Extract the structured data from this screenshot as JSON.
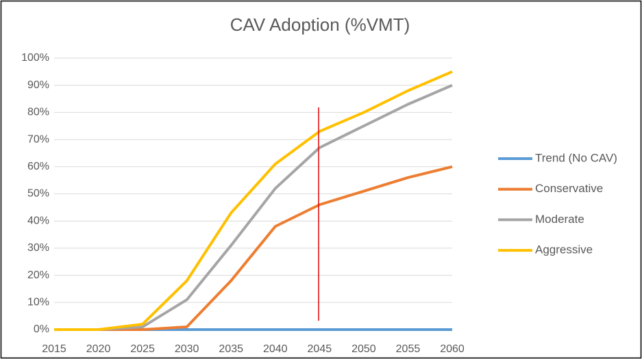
{
  "chart_data": {
    "type": "line",
    "title": "CAV Adoption (%VMT)",
    "x": [
      2015,
      2020,
      2025,
      2030,
      2035,
      2040,
      2045,
      2050,
      2055,
      2060
    ],
    "xlim": [
      2015,
      2060
    ],
    "xticks": [
      2015,
      2020,
      2025,
      2030,
      2035,
      2040,
      2045,
      2050,
      2055,
      2060
    ],
    "ylim": [
      0,
      100
    ],
    "yticks": [
      {
        "value": 0,
        "label": "0%"
      },
      {
        "value": 10,
        "label": "10%"
      },
      {
        "value": 20,
        "label": "20%"
      },
      {
        "value": 30,
        "label": "30%"
      },
      {
        "value": 40,
        "label": "40%"
      },
      {
        "value": 50,
        "label": "50%"
      },
      {
        "value": 60,
        "label": "60%"
      },
      {
        "value": 70,
        "label": "70%"
      },
      {
        "value": 80,
        "label": "80%"
      },
      {
        "value": 90,
        "label": "90%"
      },
      {
        "value": 100,
        "label": "100%"
      }
    ],
    "grid": true,
    "legend": "right",
    "series": [
      {
        "name": "Trend (No CAV)",
        "color": "#5b9bd5",
        "values": [
          0,
          0,
          0,
          0,
          0,
          0,
          0,
          0,
          0,
          0
        ]
      },
      {
        "name": "Conservative",
        "color": "#ed7d31",
        "values": [
          0,
          0,
          0,
          1,
          18,
          38,
          46,
          51,
          56,
          60
        ]
      },
      {
        "name": "Moderate",
        "color": "#a5a5a5",
        "values": [
          0,
          0,
          1,
          11,
          31,
          52,
          67,
          75,
          83,
          90
        ]
      },
      {
        "name": "Aggressive",
        "color": "#ffc000",
        "values": [
          0,
          0,
          2,
          18,
          43,
          61,
          73,
          80,
          88,
          95
        ]
      }
    ]
  }
}
